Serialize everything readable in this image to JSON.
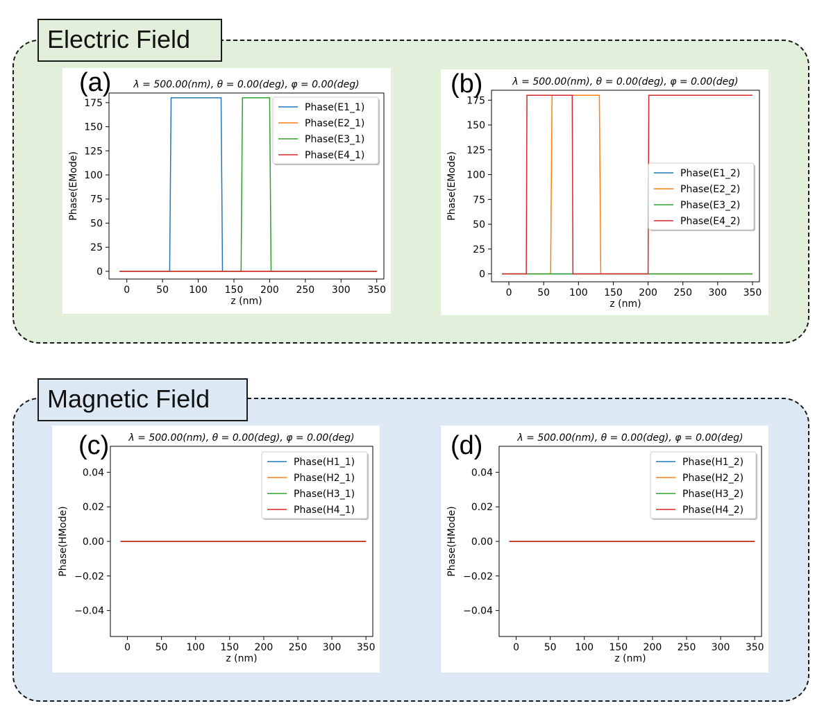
{
  "colors": {
    "electric_bg": "#e2efda",
    "magnetic_bg": "#dce9f5",
    "title_electric_bg": "#e2efda",
    "title_magnetic_bg": "#dce9f5",
    "series": [
      "#1f77b4",
      "#ff7f0e",
      "#2ca02c",
      "#d62728"
    ]
  },
  "groups": {
    "electric": {
      "title": "Electric Field"
    },
    "magnetic": {
      "title": "Magnetic Field"
    }
  },
  "chart_data": [
    {
      "type": "line",
      "panel": "(a)",
      "title": "λ = 500.00(nm), θ = 0.00(deg), φ = 0.00(deg)",
      "xlabel": "z (nm)",
      "ylabel": "Phase(EMode)",
      "xlim": [
        -25,
        360
      ],
      "ylim": [
        -8,
        185
      ],
      "xticks": [
        0,
        50,
        100,
        150,
        200,
        250,
        300,
        350
      ],
      "yticks": [
        0,
        25,
        50,
        75,
        100,
        125,
        150,
        175
      ],
      "ytick_labels": [
        "0",
        "25",
        "50",
        "75",
        "100",
        "125",
        "150",
        "175"
      ],
      "legend_position": "top-right",
      "series": [
        {
          "name": "Phase(E1_1)",
          "x": [
            -10,
            60,
            62,
            132,
            134,
            350
          ],
          "y": [
            0,
            0,
            180,
            180,
            0,
            0
          ]
        },
        {
          "name": "Phase(E2_1)",
          "x": [
            -10,
            350
          ],
          "y": [
            0,
            0
          ]
        },
        {
          "name": "Phase(E3_1)",
          "x": [
            -10,
            160,
            162,
            200,
            202,
            350
          ],
          "y": [
            0,
            0,
            180,
            180,
            0,
            0
          ]
        },
        {
          "name": "Phase(E4_1)",
          "x": [
            -10,
            350
          ],
          "y": [
            0,
            0
          ]
        }
      ]
    },
    {
      "type": "line",
      "panel": "(b)",
      "title": "λ = 500.00(nm), θ = 0.00(deg), φ = 0.00(deg)",
      "xlabel": "z (nm)",
      "ylabel": "Phase(EMode)",
      "xlim": [
        -25,
        360
      ],
      "ylim": [
        -8,
        185
      ],
      "xticks": [
        0,
        50,
        100,
        150,
        200,
        250,
        300,
        350
      ],
      "yticks": [
        0,
        25,
        50,
        75,
        100,
        125,
        150,
        175
      ],
      "ytick_labels": [
        "0",
        "25",
        "50",
        "75",
        "100",
        "125",
        "150",
        "175"
      ],
      "legend_position": "center-right",
      "series": [
        {
          "name": "Phase(E1_2)",
          "x": [
            -10,
            350
          ],
          "y": [
            0,
            0
          ]
        },
        {
          "name": "Phase(E2_2)",
          "x": [
            -10,
            60,
            62,
            130,
            132,
            350
          ],
          "y": [
            0,
            0,
            180,
            180,
            0,
            0
          ]
        },
        {
          "name": "Phase(E3_2)",
          "x": [
            -10,
            350
          ],
          "y": [
            0,
            0
          ]
        },
        {
          "name": "Phase(E4_2)",
          "x": [
            -10,
            25,
            26,
            91,
            92,
            200,
            201,
            350
          ],
          "y": [
            0,
            0,
            180,
            180,
            0,
            0,
            180,
            180
          ]
        }
      ]
    },
    {
      "type": "line",
      "panel": "(c)",
      "title": "λ = 500.00(nm), θ = 0.00(deg), φ = 0.00(deg)",
      "xlabel": "z (nm)",
      "ylabel": "Phase(HMode)",
      "xlim": [
        -25,
        360
      ],
      "ylim": [
        -0.055,
        0.055
      ],
      "xticks": [
        0,
        50,
        100,
        150,
        200,
        250,
        300,
        350
      ],
      "yticks": [
        -0.04,
        -0.02,
        0,
        0.02,
        0.04
      ],
      "ytick_labels": [
        "−0.04",
        "−0.02",
        "0.00",
        "0.02",
        "0.04"
      ],
      "legend_position": "top-right",
      "series": [
        {
          "name": "Phase(H1_1)",
          "x": [
            -10,
            350
          ],
          "y": [
            0,
            0
          ]
        },
        {
          "name": "Phase(H2_1)",
          "x": [
            -10,
            350
          ],
          "y": [
            0,
            0
          ]
        },
        {
          "name": "Phase(H3_1)",
          "x": [
            -10,
            350
          ],
          "y": [
            0,
            0
          ]
        },
        {
          "name": "Phase(H4_1)",
          "x": [
            -10,
            350
          ],
          "y": [
            0,
            0
          ]
        }
      ]
    },
    {
      "type": "line",
      "panel": "(d)",
      "title": "λ = 500.00(nm), θ = 0.00(deg), φ = 0.00(deg)",
      "xlabel": "z (nm)",
      "ylabel": "Phase(HMode)",
      "xlim": [
        -25,
        360
      ],
      "ylim": [
        -0.055,
        0.055
      ],
      "xticks": [
        0,
        50,
        100,
        150,
        200,
        250,
        300,
        350
      ],
      "yticks": [
        -0.04,
        -0.02,
        0,
        0.02,
        0.04
      ],
      "ytick_labels": [
        "−0.04",
        "−0.02",
        "0.00",
        "0.02",
        "0.04"
      ],
      "legend_position": "top-right",
      "series": [
        {
          "name": "Phase(H1_2)",
          "x": [
            -10,
            350
          ],
          "y": [
            0,
            0
          ]
        },
        {
          "name": "Phase(H2_2)",
          "x": [
            -10,
            350
          ],
          "y": [
            0,
            0
          ]
        },
        {
          "name": "Phase(H3_2)",
          "x": [
            -10,
            350
          ],
          "y": [
            0,
            0
          ]
        },
        {
          "name": "Phase(H4_2)",
          "x": [
            -10,
            350
          ],
          "y": [
            0,
            0
          ]
        }
      ]
    }
  ]
}
